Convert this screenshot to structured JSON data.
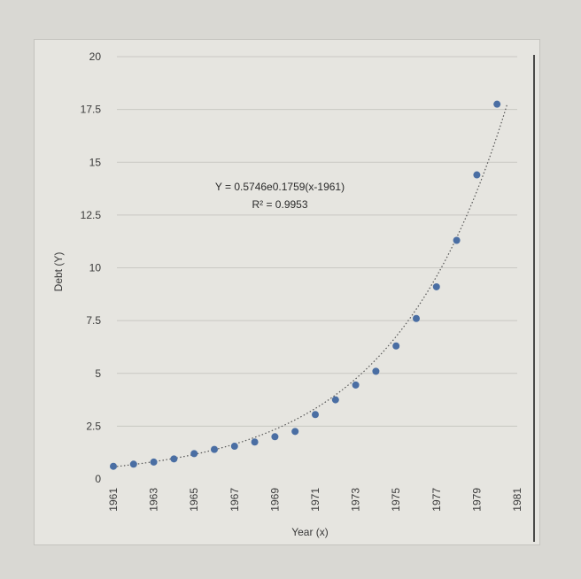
{
  "chart_data": {
    "type": "scatter",
    "xlabel": "Year (x)",
    "ylabel": "Debt (Y)",
    "xlim": [
      1961,
      1981
    ],
    "ylim": [
      0,
      20
    ],
    "x_ticks": [
      "1961",
      "1963",
      "1965",
      "1967",
      "1969",
      "1971",
      "1973",
      "1975",
      "1977",
      "1979",
      "1981"
    ],
    "y_ticks": [
      "0",
      "2.5",
      "5",
      "7.5",
      "10",
      "12.5",
      "15",
      "17.5",
      "20"
    ],
    "grid": "horizontal",
    "points": {
      "x": [
        1961,
        1962,
        1963,
        1964,
        1965,
        1966,
        1967,
        1968,
        1969,
        1970,
        1971,
        1972,
        1973,
        1974,
        1975,
        1976,
        1977,
        1978,
        1979,
        1980
      ],
      "y": [
        0.6,
        0.7,
        0.8,
        0.95,
        1.2,
        1.4,
        1.55,
        1.75,
        2.0,
        2.25,
        3.05,
        3.75,
        4.45,
        5.1,
        6.3,
        7.6,
        9.1,
        11.3,
        14.4,
        17.75
      ]
    },
    "trendline": {
      "style": "dotted",
      "equation_text": "Y = 0.5746e0.1759(x-1961)",
      "r2_text": "R² = 0.9953",
      "a": 0.5746,
      "b": 0.1759,
      "x0": 1961,
      "x_range": [
        1961,
        1980.5
      ]
    },
    "colors": {
      "marker": "#4a6ea3",
      "grid": "#c9c8c3",
      "trend": "#555555",
      "text": "#3a3a3a"
    }
  }
}
